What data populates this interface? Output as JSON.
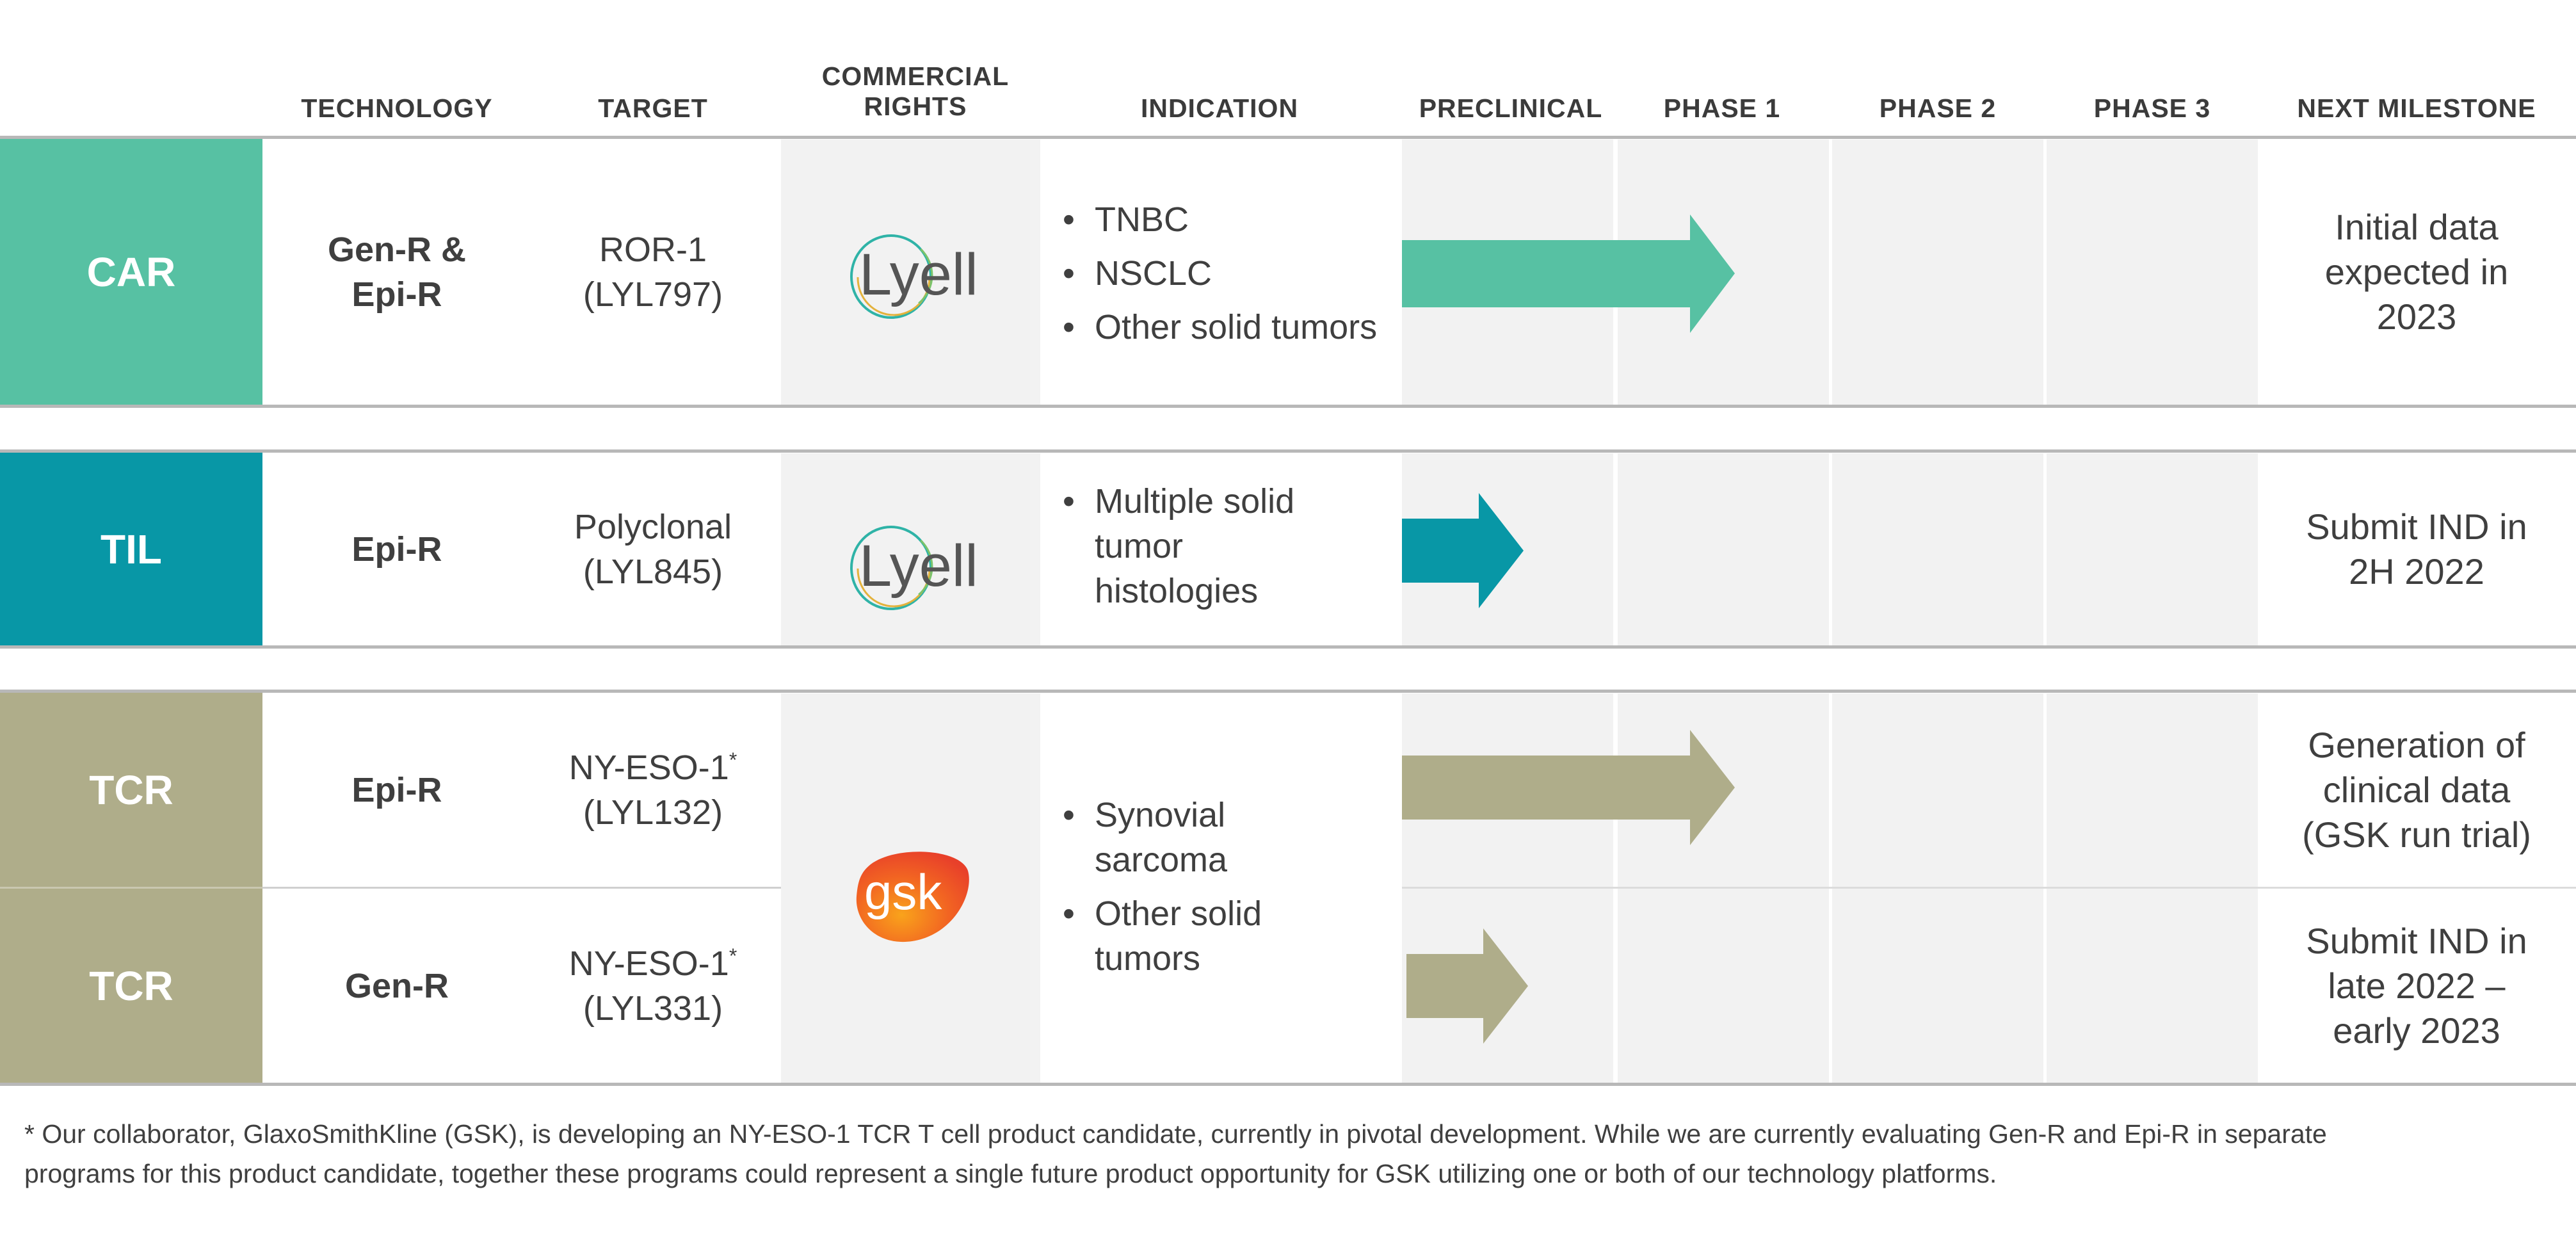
{
  "headers": {
    "technology": "TECHNOLOGY",
    "target": "TARGET",
    "commercial_rights": "COMMERCIAL RIGHTS",
    "indication": "INDICATION",
    "preclinical": "PRECLINICAL",
    "phase1": "PHASE 1",
    "phase2": "PHASE 2",
    "phase3": "PHASE 3",
    "next_milestone": "NEXT MILESTONE"
  },
  "colors": {
    "car": "#57c1a3",
    "til": "#0897a6",
    "tcr": "#afad8a"
  },
  "rows": [
    {
      "label": "CAR",
      "technology": "Gen-R & Epi-R",
      "target_name": "ROR-1",
      "target_code": "(LYL797)",
      "rights": "Lyell",
      "indications": [
        "TNBC",
        "NSCLC",
        "Other solid tumors"
      ],
      "progress_phase": 1,
      "next_milestone": "Initial data expected in 2023"
    },
    {
      "label": "TIL",
      "technology": "Epi-R",
      "target_name": "Polyclonal",
      "target_code": "(LYL845)",
      "rights": "Lyell",
      "indications": [
        "Multiple solid tumor histologies"
      ],
      "progress_phase": 0.5,
      "next_milestone": "Submit IND in 2H 2022"
    },
    {
      "label": "TCR",
      "technology": "Epi-R",
      "target_name": "NY-ESO-1",
      "target_mark": "*",
      "target_code": "(LYL132)",
      "progress_phase": 1,
      "next_milestone": "Generation of clinical data (GSK run trial)"
    },
    {
      "label": "TCR",
      "technology": "Gen-R",
      "target_name": "NY-ESO-1",
      "target_mark": "*",
      "target_code": "(LYL331)",
      "progress_phase": 0.5,
      "next_milestone": "Submit IND in late 2022 – early 2023"
    }
  ],
  "tcr_shared": {
    "rights": "gsk",
    "indications": [
      "Synovial sarcoma",
      "Other solid tumors"
    ]
  },
  "footnote": "* Our collaborator, GlaxoSmithKline (GSK), is developing an NY-ESO-1 TCR T cell product candidate, currently in pivotal development. While we are currently evaluating Gen-R and Epi-R in separate programs for this product candidate, together these programs could represent a single future product opportunity for GSK utilizing one or both of our technology platforms."
}
